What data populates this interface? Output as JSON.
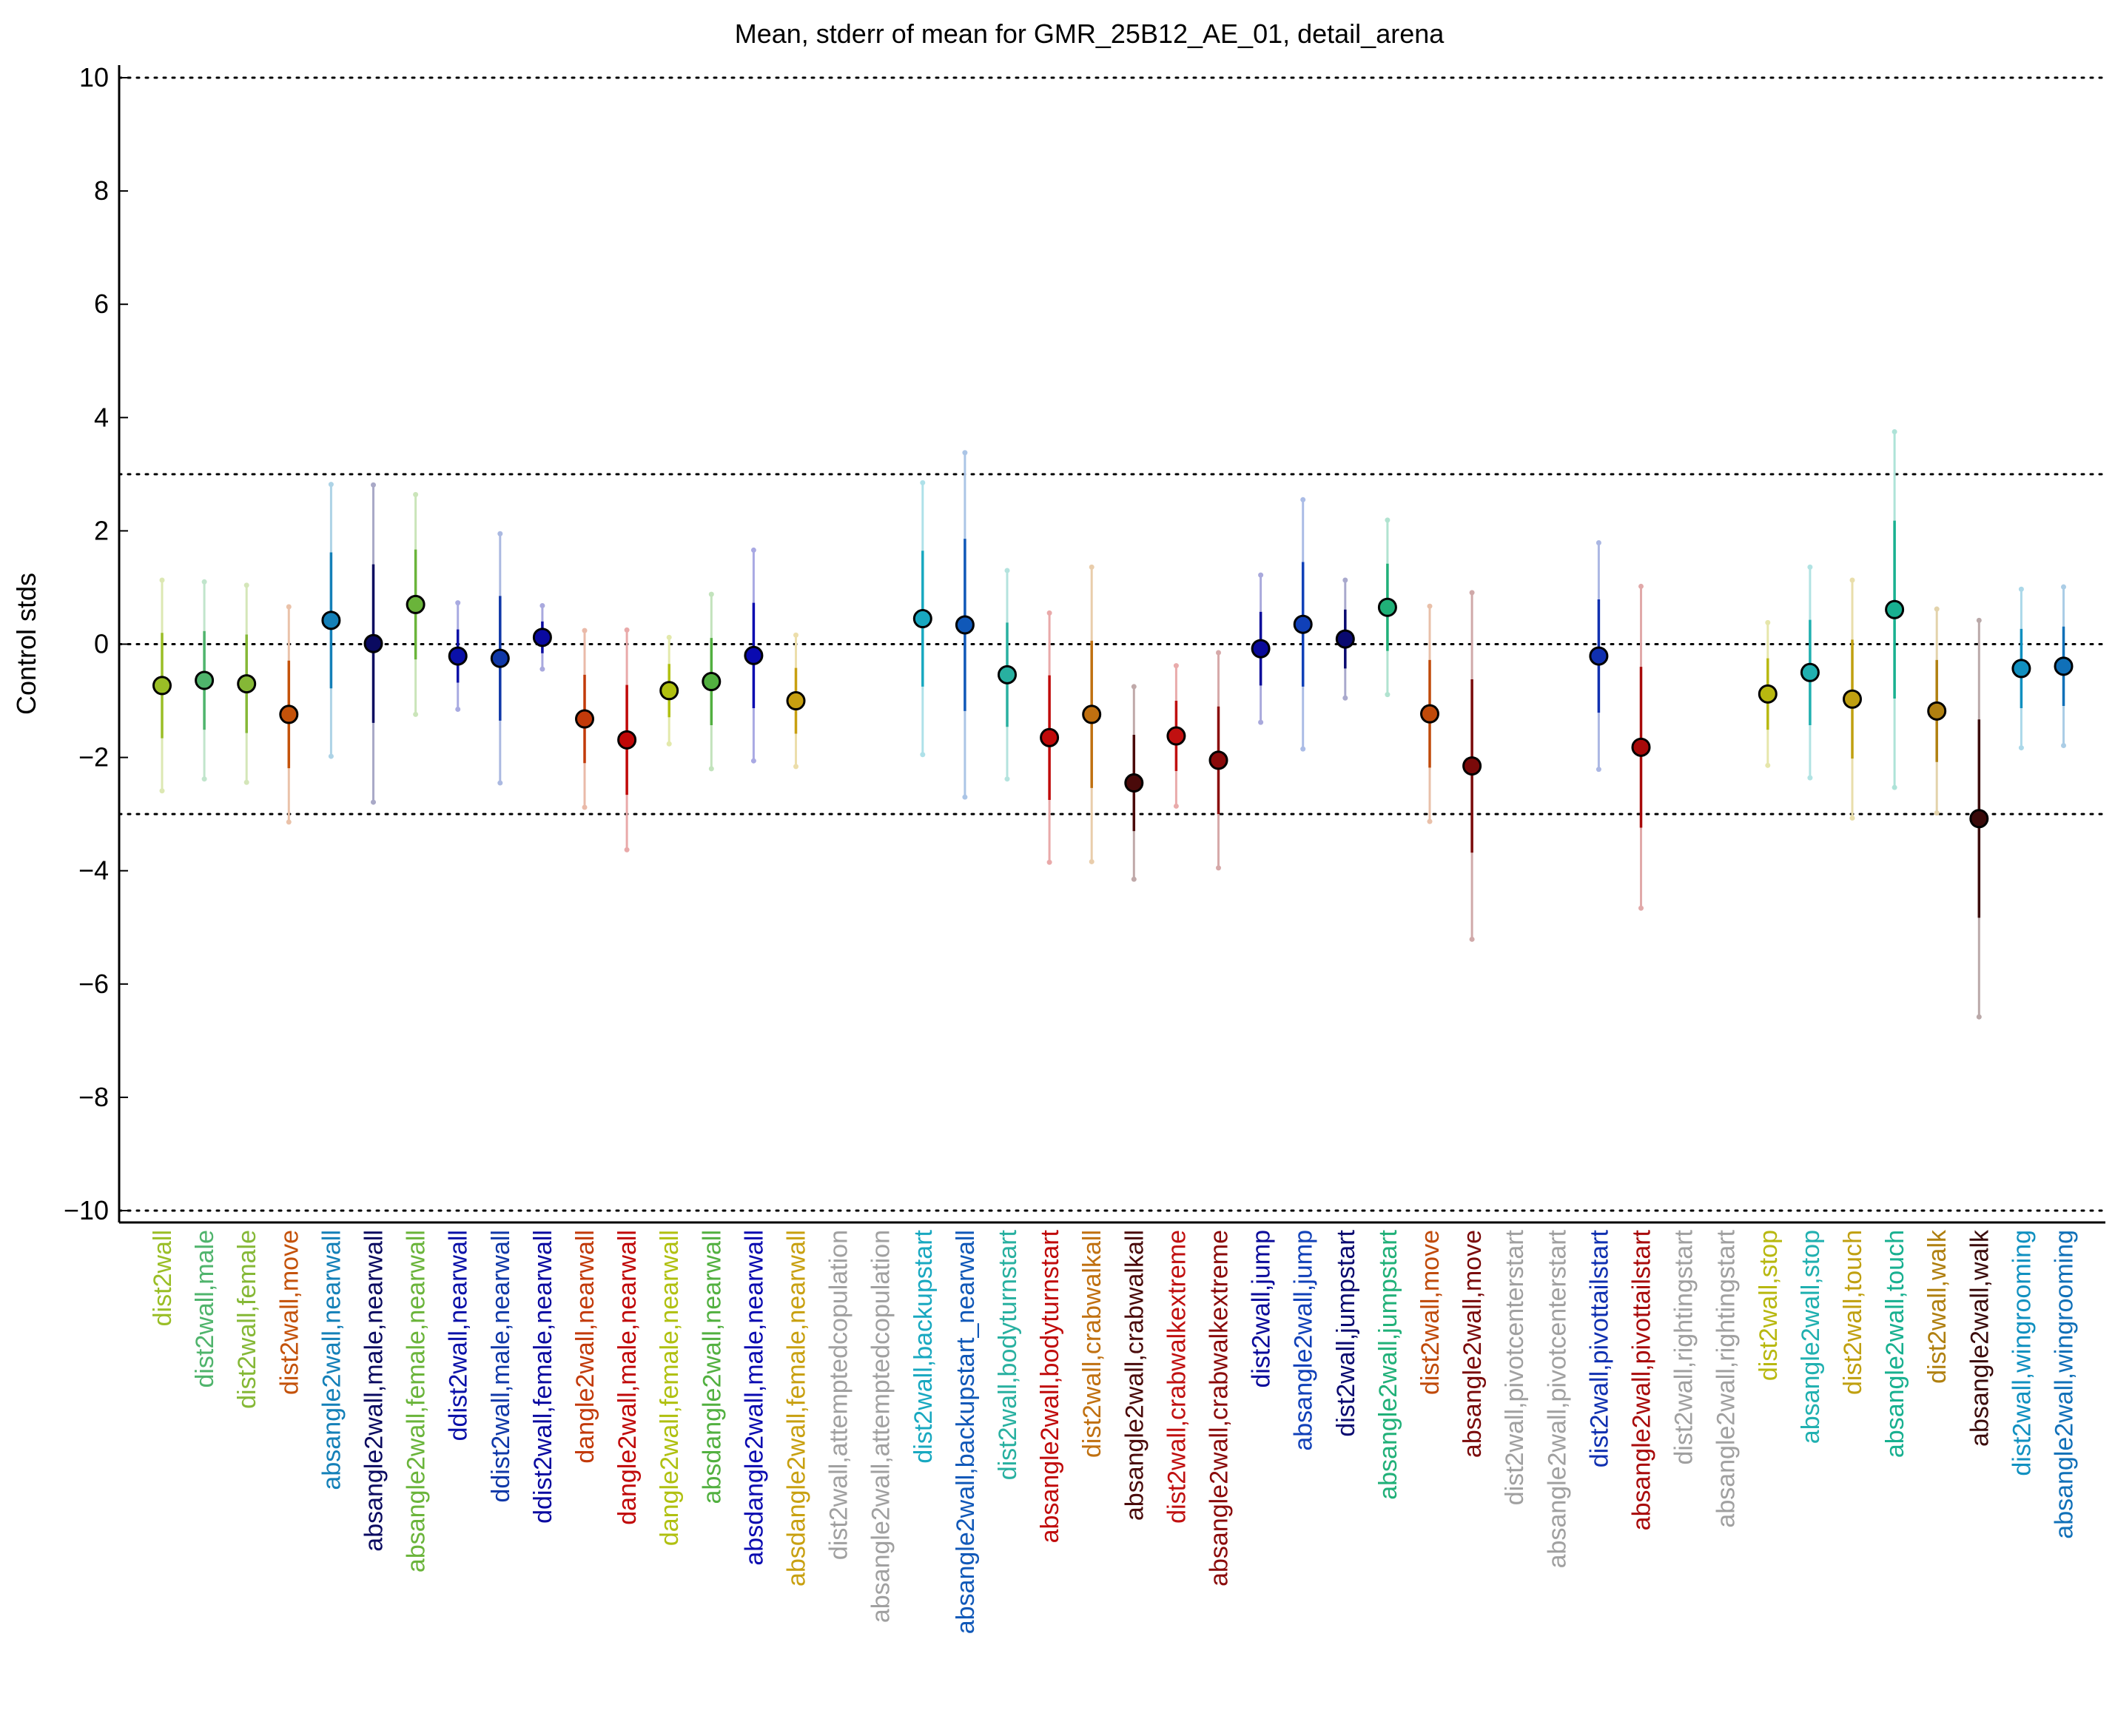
{
  "chart_data": {
    "type": "scatter",
    "title": "Mean, stderr of mean for GMR_25B12_AE_01, detail_arena",
    "xlabel": "",
    "ylabel": "Control stds",
    "ylim": [
      -10,
      10
    ],
    "yticks": [
      10,
      8,
      6,
      4,
      2,
      0,
      -2,
      -4,
      -6,
      -8,
      -10
    ],
    "ytick_labels": [
      "10",
      "8",
      "6",
      "4",
      "2",
      "0",
      "−2",
      "−4",
      "−6",
      "−8",
      "−10"
    ],
    "reference_lines": [
      10,
      3,
      0,
      -3,
      -10
    ],
    "categories": [
      "dist2wall",
      "dist2wall,male",
      "dist2wall,female",
      "dist2wall,move",
      "absangle2wall,nearwall",
      "absangle2wall,male,nearwall",
      "absangle2wall,female,nearwall",
      "ddist2wall,nearwall",
      "ddist2wall,male,nearwall",
      "ddist2wall,female,nearwall",
      "dangle2wall,nearwall",
      "dangle2wall,male,nearwall",
      "dangle2wall,female,nearwall",
      "absdangle2wall,nearwall",
      "absdangle2wall,male,nearwall",
      "absdangle2wall,female,nearwall",
      "dist2wall,attemptedcopulation",
      "absangle2wall,attemptedcopulation",
      "dist2wall,backupstart",
      "absangle2wall,backupstart_nearwall",
      "dist2wall,bodyturnstart",
      "absangle2wall,bodyturnstart",
      "dist2wall,crabwalkall",
      "absangle2wall,crabwalkall",
      "dist2wall,crabwalkextreme",
      "absangle2wall,crabwalkextreme",
      "dist2wall,jump",
      "absangle2wall,jump",
      "dist2wall,jumpstart",
      "absangle2wall,jumpstart",
      "dist2wall,move",
      "absangle2wall,move",
      "dist2wall,pivotcenterstart",
      "absangle2wall,pivotcenterstart",
      "dist2wall,pivottailstart",
      "absangle2wall,pivottailstart",
      "dist2wall,rightingstart",
      "absangle2wall,rightingstart",
      "dist2wall,stop",
      "absangle2wall,stop",
      "dist2wall,touch",
      "absangle2wall,touch",
      "dist2wall,walk",
      "absangle2wall,walk",
      "dist2wall,wingrooming",
      "absangle2wall,wingrooming"
    ],
    "series": [
      {
        "mean": [
          -0.73,
          -0.64,
          -0.7,
          -1.24,
          0.42,
          0.01,
          0.7,
          -0.21,
          -0.25,
          0.12,
          -1.32,
          -1.69,
          -0.82,
          -0.66,
          -0.2,
          -1.0,
          null,
          null,
          0.45,
          0.34,
          -0.54,
          -1.65,
          -1.24,
          -2.45,
          -1.62,
          -2.05,
          -0.08,
          0.35,
          0.09,
          0.65,
          -1.23,
          -2.15,
          null,
          null,
          -0.21,
          -1.82,
          null,
          null,
          -0.88,
          -0.5,
          -0.97,
          0.61,
          -1.18,
          -3.08,
          -0.43,
          -0.39
        ],
        "stderr": [
          0.93,
          0.87,
          0.87,
          0.95,
          1.2,
          1.4,
          0.97,
          0.47,
          1.1,
          0.28,
          0.78,
          0.97,
          0.47,
          0.77,
          0.93,
          0.58,
          null,
          null,
          1.2,
          1.52,
          0.92,
          1.1,
          1.3,
          0.85,
          0.62,
          0.95,
          0.65,
          1.1,
          0.52,
          0.77,
          0.95,
          1.53,
          null,
          null,
          1.0,
          1.42,
          null,
          null,
          0.63,
          0.93,
          1.05,
          1.57,
          0.9,
          1.75,
          0.7,
          0.7
        ]
      }
    ],
    "colors": [
      "#9abe26",
      "#4fb46c",
      "#85b836",
      "#c4520a",
      "#1480b8",
      "#0a0a60",
      "#6ab43a",
      "#0a10a8",
      "#1038a8",
      "#0a0aa0",
      "#c23a0a",
      "#c00808",
      "#b0c010",
      "#52b040",
      "#0a0ab0",
      "#c8a010",
      "#a0a0a0",
      "#a0a0a0",
      "#18a8c0",
      "#1058b8",
      "#28b0a0",
      "#c00a0a",
      "#c07010",
      "#4a0a0a",
      "#c01010",
      "#8a0a0a",
      "#0a0a9a",
      "#1040b8",
      "#0a0a70",
      "#20b078",
      "#c04a0a",
      "#7a0a0a",
      "#a0a0a0",
      "#a0a0a0",
      "#1030b0",
      "#a80a0a",
      "#a0a0a0",
      "#a0a0a0",
      "#b8b810",
      "#20b0b0",
      "#c0a010",
      "#18b090",
      "#b08010",
      "#3a0a0a",
      "#1090c0",
      "#1070b8"
    ],
    "grid": false,
    "legend": "none"
  }
}
